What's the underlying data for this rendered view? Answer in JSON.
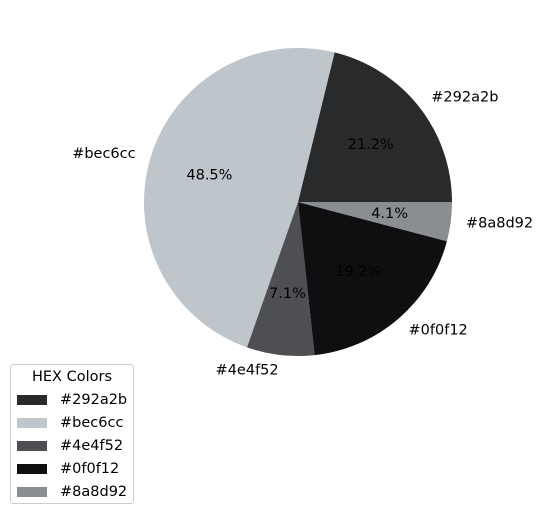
{
  "chart_data": {
    "type": "pie",
    "title": "",
    "labels": [
      "#292a2b",
      "#bec6cc",
      "#4e4f52",
      "#0f0f12",
      "#8a8d92"
    ],
    "values": [
      21.2,
      48.5,
      7.1,
      19.2,
      4.1
    ],
    "percent_labels": [
      "21.2%",
      "48.5%",
      "7.1%",
      "19.2%",
      "4.1%"
    ],
    "colors": [
      "#292a2b",
      "#bec6cc",
      "#4e4f52",
      "#0f0f12",
      "#8a8d92"
    ],
    "start_angle_deg": 0,
    "direction": "counterclockwise",
    "legend": {
      "title": "HEX Colors",
      "placement": "lower-left",
      "entries": [
        "#292a2b",
        "#bec6cc",
        "#4e4f52",
        "#0f0f12",
        "#8a8d92"
      ]
    }
  }
}
